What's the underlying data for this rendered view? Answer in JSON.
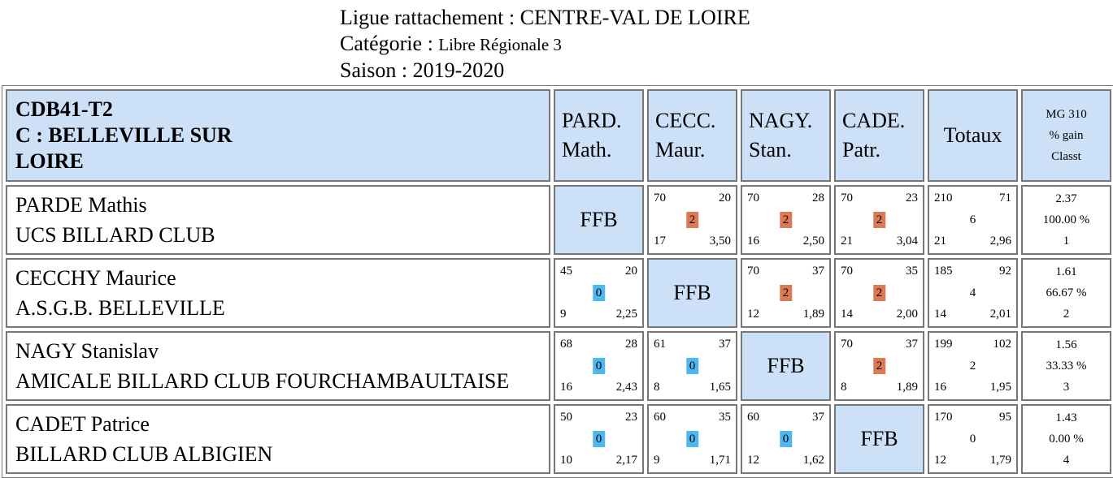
{
  "header": {
    "ligue": "Ligue rattachement : CENTRE-VAL DE LOIRE",
    "categorie_label": "Catégorie : ",
    "categorie_value": "Libre Régionale 3",
    "saison": "Saison : 2019-2020"
  },
  "table": {
    "team_line1": "CDB41-T2",
    "team_line2": "C : BELLEVILLE SUR",
    "team_line3": "LOIRE",
    "columns": [
      {
        "line1": "PARD.",
        "line2": "Math."
      },
      {
        "line1": "CECC.",
        "line2": "Maur."
      },
      {
        "line1": "NAGY.",
        "line2": "Stan."
      },
      {
        "line1": "CADE.",
        "line2": "Patr."
      }
    ],
    "totaux_label": "Totaux",
    "mg_line1": "MG 310",
    "mg_line2": "% gain",
    "mg_line3": "Classt",
    "ffb_label": "FFB",
    "players": [
      {
        "name": "PARDE Mathis",
        "club": "UCS BILLARD CLUB",
        "scores": [
          null,
          {
            "points": "70",
            "reprises": "20",
            "match_pts": "2",
            "serie": "17",
            "moyenne": "3,50"
          },
          {
            "points": "70",
            "reprises": "28",
            "match_pts": "2",
            "serie": "16",
            "moyenne": "2,50"
          },
          {
            "points": "70",
            "reprises": "23",
            "match_pts": "2",
            "serie": "21",
            "moyenne": "3,04"
          }
        ],
        "totals": {
          "points": "210",
          "reprises": "71",
          "match_pts": "6",
          "serie": "21",
          "moyenne": "2,96"
        },
        "result": {
          "mg": "2.37",
          "gain": "100.00 %",
          "classt": "1"
        }
      },
      {
        "name": "CECCHY Maurice",
        "club": "A.S.G.B. BELLEVILLE",
        "scores": [
          {
            "points": "45",
            "reprises": "20",
            "match_pts": "0",
            "serie": "9",
            "moyenne": "2,25"
          },
          null,
          {
            "points": "70",
            "reprises": "37",
            "match_pts": "2",
            "serie": "12",
            "moyenne": "1,89"
          },
          {
            "points": "70",
            "reprises": "35",
            "match_pts": "2",
            "serie": "14",
            "moyenne": "2,00"
          }
        ],
        "totals": {
          "points": "185",
          "reprises": "92",
          "match_pts": "4",
          "serie": "14",
          "moyenne": "2,01"
        },
        "result": {
          "mg": "1.61",
          "gain": "66.67 %",
          "classt": "2"
        }
      },
      {
        "name": "NAGY Stanislav",
        "club": "AMICALE BILLARD CLUB FOURCHAMBAULTAISE",
        "scores": [
          {
            "points": "68",
            "reprises": "28",
            "match_pts": "0",
            "serie": "16",
            "moyenne": "2,43"
          },
          {
            "points": "61",
            "reprises": "37",
            "match_pts": "0",
            "serie": "8",
            "moyenne": "1,65"
          },
          null,
          {
            "points": "70",
            "reprises": "37",
            "match_pts": "2",
            "serie": "8",
            "moyenne": "1,89"
          }
        ],
        "totals": {
          "points": "199",
          "reprises": "102",
          "match_pts": "2",
          "serie": "16",
          "moyenne": "1,95"
        },
        "result": {
          "mg": "1.56",
          "gain": "33.33 %",
          "classt": "3"
        }
      },
      {
        "name": "CADET Patrice",
        "club": "BILLARD CLUB ALBIGIEN",
        "scores": [
          {
            "points": "50",
            "reprises": "23",
            "match_pts": "0",
            "serie": "10",
            "moyenne": "2,17"
          },
          {
            "points": "60",
            "reprises": "35",
            "match_pts": "0",
            "serie": "9",
            "moyenne": "1,71"
          },
          {
            "points": "60",
            "reprises": "37",
            "match_pts": "0",
            "serie": "12",
            "moyenne": "1,62"
          },
          null
        ],
        "totals": {
          "points": "170",
          "reprises": "95",
          "match_pts": "0",
          "serie": "12",
          "moyenne": "1,79"
        },
        "result": {
          "mg": "1.43",
          "gain": "0.00 %",
          "classt": "4"
        }
      }
    ]
  },
  "colors": {
    "header_bg": "#cce0f8",
    "win_badge": "#dd7a55",
    "loss_badge": "#4db8f0",
    "border": "#777777"
  }
}
